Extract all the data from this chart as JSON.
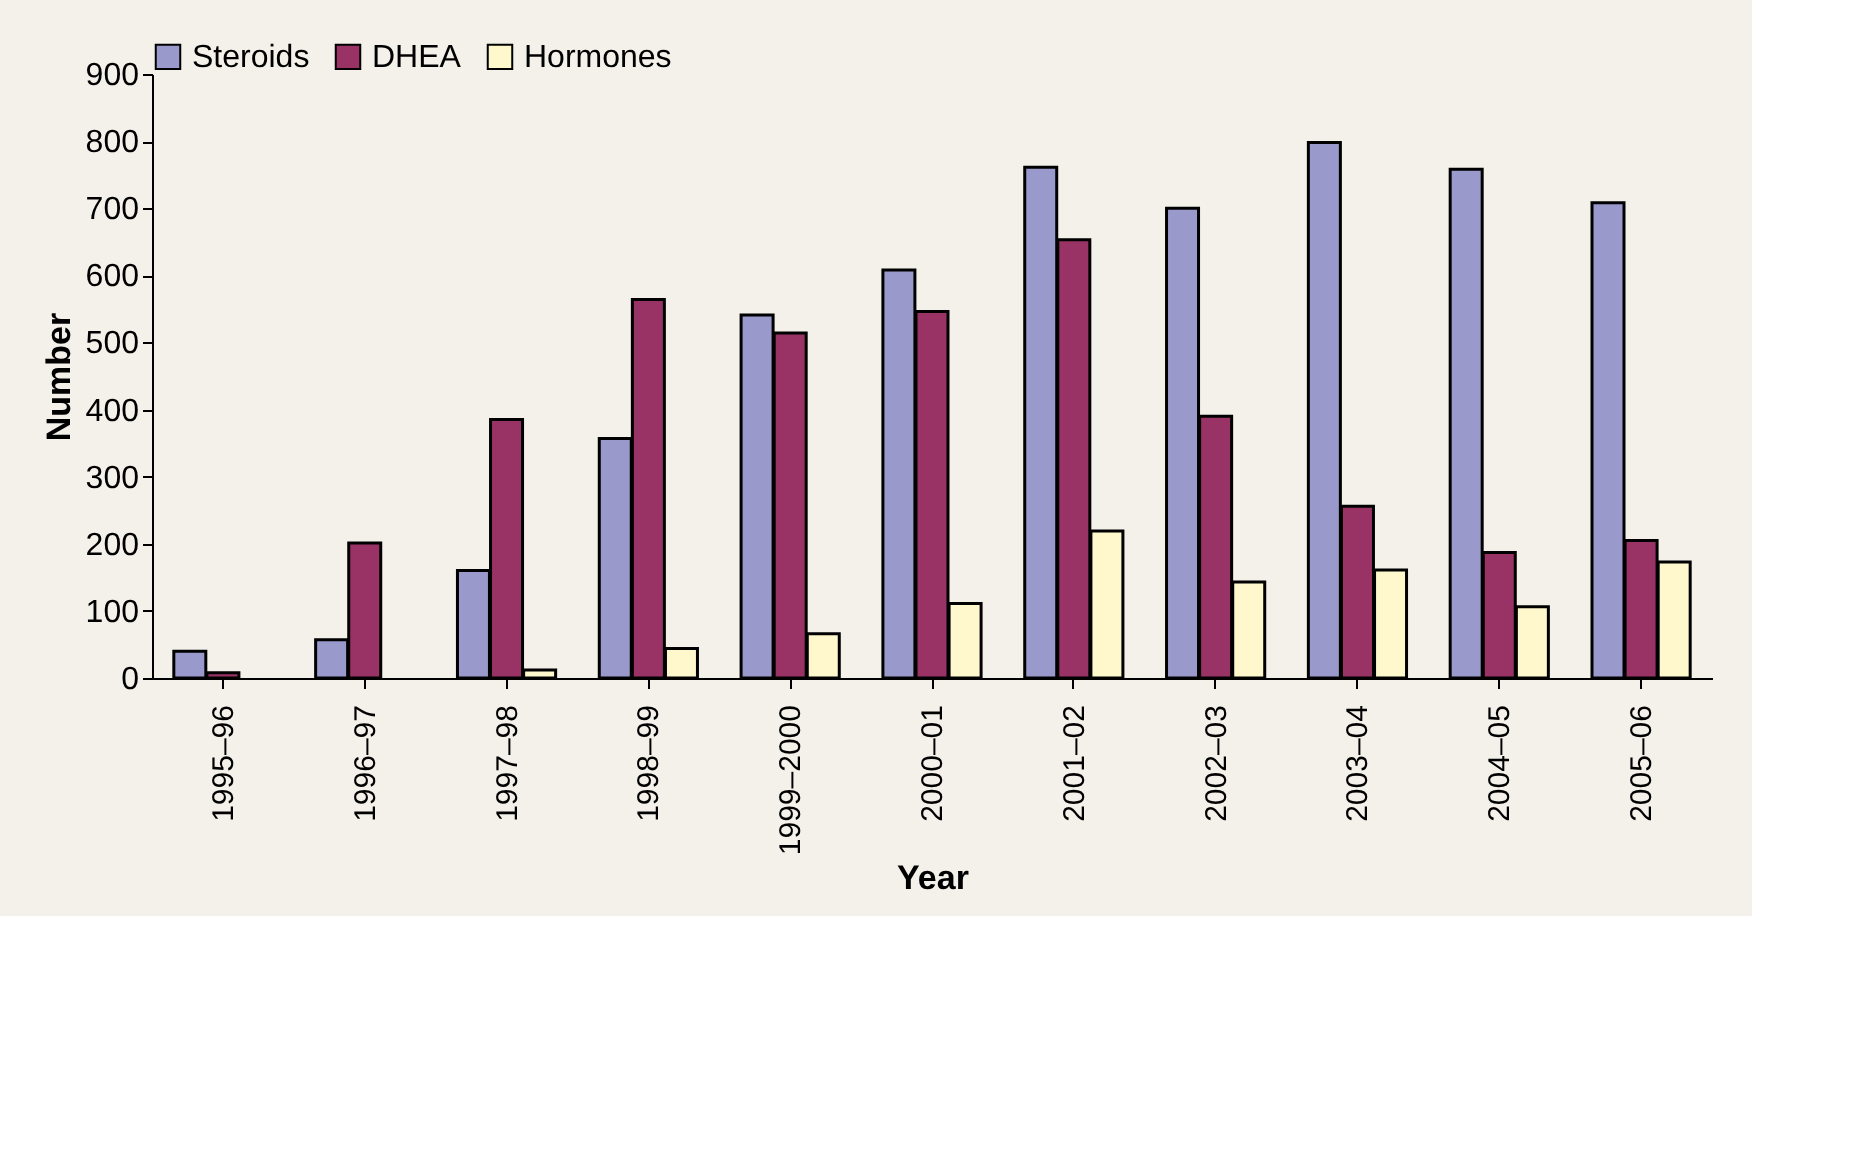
{
  "chart_data": {
    "type": "bar",
    "xlabel": "Year",
    "ylabel": "Number",
    "categories": [
      "1995–96",
      "1996–97",
      "1997–98",
      "1998–99",
      "1999–2000",
      "2000–01",
      "2001–02",
      "2002–03",
      "2003–04",
      "2004–05",
      "2005–06"
    ],
    "series": [
      {
        "name": "Steroids",
        "color": "#9999cc",
        "values": [
          40,
          57,
          160,
          357,
          541,
          608,
          761,
          700,
          798,
          758,
          708
        ]
      },
      {
        "name": "DHEA",
        "color": "#993366",
        "values": [
          8,
          201,
          385,
          564,
          514,
          546,
          653,
          390,
          256,
          187,
          205
        ]
      },
      {
        "name": "Hormones",
        "color": "#fff8cc",
        "values": [
          null,
          null,
          12,
          44,
          66,
          111,
          219,
          143,
          161,
          106,
          173
        ]
      }
    ],
    "ylim": [
      0,
      900
    ],
    "yticks": [
      0,
      100,
      200,
      300,
      400,
      500,
      600,
      700,
      800,
      900
    ],
    "grid": false,
    "legend": "top"
  }
}
